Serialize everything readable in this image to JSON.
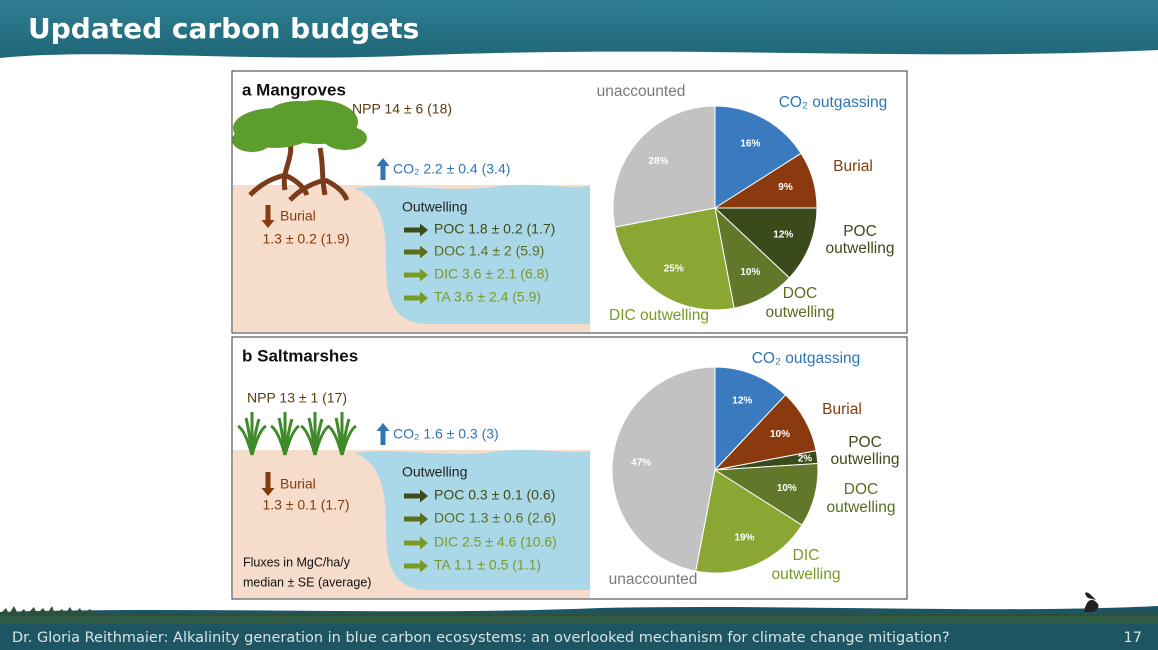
{
  "header": {
    "title": "Updated carbon budgets"
  },
  "panels": [
    {
      "title": "a Mangroves",
      "npp": "NPP 14 ± 6 (18)",
      "co2": "CO₂ 2.2 ± 0.4 (3.4)",
      "burial": {
        "label": "Burial",
        "value": "1.3 ± 0.2 (1.9)"
      },
      "outwelling": {
        "title": "Outwelling",
        "items": [
          "POC 1.8 ± 0.2 (1.7)",
          "DOC 1.4 ± 2 (5.9)",
          "DIC 3.6 ± 2.1 (6.8)",
          "TA 3.6 ± 2.4 (5.9)"
        ]
      },
      "pie": {
        "type": "pie",
        "categories": [
          [
            "CO₂ outgassing"
          ],
          [
            "Burial"
          ],
          [
            "POC",
            "outwelling"
          ],
          [
            "DOC",
            "outwelling"
          ],
          [
            "DIC outwelling"
          ],
          [
            "unaccounted"
          ]
        ],
        "values": [
          16,
          9,
          12,
          10,
          25,
          28
        ],
        "value_labels": [
          "16%",
          "9%",
          "12%",
          "10%",
          "25%",
          "28%"
        ],
        "colors": [
          "#3a7bbf",
          "#8b3a10",
          "#3b4a1b",
          "#61772a",
          "#8aa733",
          "#c2c2c2"
        ]
      }
    },
    {
      "title": "b Saltmarshes",
      "npp": "NPP 13 ± 1 (17)",
      "co2": "CO₂ 1.6 ± 0.3 (3)",
      "burial": {
        "label": "Burial",
        "value": "1.3 ± 0.1 (1.7)"
      },
      "outwelling": {
        "title": "Outwelling",
        "items": [
          "POC 0.3 ± 0.1 (0.6)",
          "DOC 1.3 ± 0.6 (2.6)",
          "DIC 2.5 ± 4.6 (10.6)",
          "TA 1.1 ± 0.5 (1.1)"
        ]
      },
      "note": [
        "Fluxes in MgC/ha/y",
        "median ± SE (average)"
      ],
      "pie": {
        "type": "pie",
        "categories": [
          [
            "CO₂ outgassing"
          ],
          [
            "Burial"
          ],
          [
            "POC",
            "outwelling"
          ],
          [
            "DOC",
            "outwelling"
          ],
          [
            "DIC",
            "outwelling"
          ],
          [
            "unaccounted"
          ]
        ],
        "values": [
          12,
          10,
          2,
          10,
          19,
          47
        ],
        "value_labels": [
          "12%",
          "10%",
          "2%",
          "10%",
          "19%",
          "47%"
        ],
        "colors": [
          "#3a7bbf",
          "#8b3a10",
          "#3b4a1b",
          "#61772a",
          "#8aa733",
          "#c2c2c2"
        ]
      }
    }
  ],
  "footer": {
    "text": "Dr. Gloria Reithmaier: Alkalinity generation in blue carbon ecosystems: an overlooked mechanism for climate change mitigation?",
    "page": "17"
  }
}
